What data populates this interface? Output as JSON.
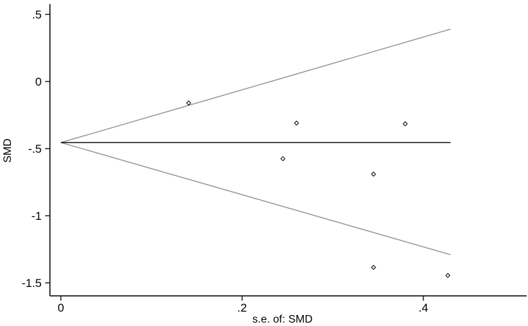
{
  "chart_data": {
    "type": "scatter",
    "title": "",
    "xlabel": "s.e. of: SMD",
    "ylabel": "SMD",
    "xlim": [
      -0.01,
      0.43
    ],
    "ylim": [
      -1.6,
      0.55
    ],
    "x_ticks": [
      {
        "value": 0,
        "label": "0"
      },
      {
        "value": 0.2,
        "label": ".2"
      },
      {
        "value": 0.4,
        "label": ".4"
      }
    ],
    "y_ticks": [
      {
        "value": 0.5,
        "label": ".5"
      },
      {
        "value": 0,
        "label": "0"
      },
      {
        "value": -0.5,
        "label": "-.5"
      },
      {
        "value": -1,
        "label": "-1"
      },
      {
        "value": -1.5,
        "label": "-1.5"
      }
    ],
    "grid": false,
    "legend": "none",
    "pooled_estimate": -0.455,
    "pseudo_ci_lines": [
      {
        "name": "",
        "x": [
          0,
          0.43
        ],
        "y": [
          -0.455,
          0.39
        ]
      },
      {
        "name": "",
        "x": [
          0,
          0.43
        ],
        "y": [
          -0.455,
          -1.29
        ]
      }
    ],
    "points": [
      {
        "x": 0.141,
        "y": -0.16
      },
      {
        "x": 0.26,
        "y": -0.31
      },
      {
        "x": 0.245,
        "y": -0.575
      },
      {
        "x": 0.345,
        "y": -0.69
      },
      {
        "x": 0.38,
        "y": -0.315
      },
      {
        "x": 0.345,
        "y": -1.385
      },
      {
        "x": 0.427,
        "y": -1.445
      }
    ],
    "colors": {
      "axis": "#000000",
      "ci_line": "#8c8c8c",
      "pooled_line": "#000000",
      "marker": "#000000"
    }
  }
}
